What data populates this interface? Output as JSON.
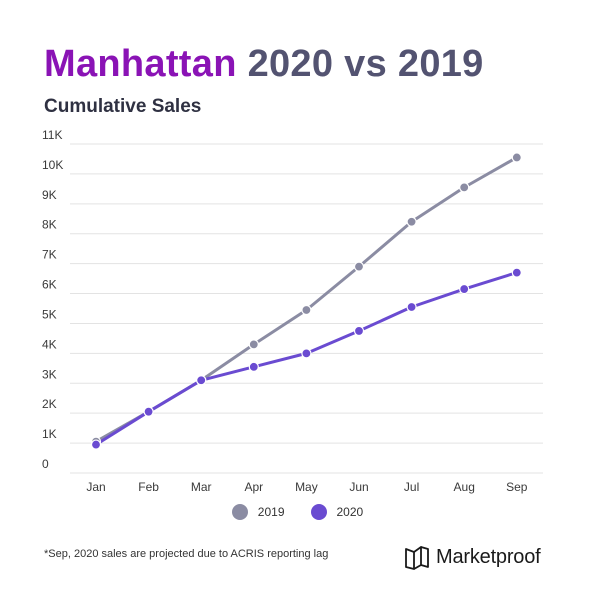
{
  "title": {
    "part1": "Manhattan",
    "part2": "2020 vs 2019"
  },
  "subtitle": "Cumulative Sales",
  "footnote": "*Sep, 2020 sales are projected due to ACRIS reporting lag",
  "brand": {
    "name": "Marketproof",
    "icon": "marketproof-logo-icon"
  },
  "colors": {
    "title_accent": "#8a13b5",
    "title_main": "#535371",
    "series_2019": "#8b8ca3",
    "series_2020": "#6a4bd1",
    "grid": "#e3e3e3"
  },
  "chart_data": {
    "type": "line",
    "title": "Cumulative Sales",
    "xlabel": "",
    "ylabel": "",
    "categories": [
      "Jan",
      "Feb",
      "Mar",
      "Apr",
      "May",
      "Jun",
      "Jul",
      "Aug",
      "Sep"
    ],
    "y_ticks": [
      {
        "value": 0,
        "label": "0"
      },
      {
        "value": 1000,
        "label": "1K"
      },
      {
        "value": 2000,
        "label": "2K"
      },
      {
        "value": 3000,
        "label": "3K"
      },
      {
        "value": 4000,
        "label": "4K"
      },
      {
        "value": 5000,
        "label": "5K"
      },
      {
        "value": 6000,
        "label": "6K"
      },
      {
        "value": 7000,
        "label": "7K"
      },
      {
        "value": 8000,
        "label": "8K"
      },
      {
        "value": 9000,
        "label": "9K"
      },
      {
        "value": 10000,
        "label": "10K"
      },
      {
        "value": 11000,
        "label": "11K"
      }
    ],
    "ylim": [
      0,
      11000
    ],
    "grid": true,
    "legend_position": "bottom-center",
    "series": [
      {
        "name": "2019",
        "color": "#8b8ca3",
        "values": [
          1050,
          2050,
          3100,
          4300,
          5450,
          6900,
          8400,
          9550,
          10550
        ]
      },
      {
        "name": "2020",
        "color": "#6a4bd1",
        "values": [
          950,
          2050,
          3100,
          3550,
          4000,
          4750,
          5550,
          6150,
          6700
        ]
      }
    ]
  }
}
